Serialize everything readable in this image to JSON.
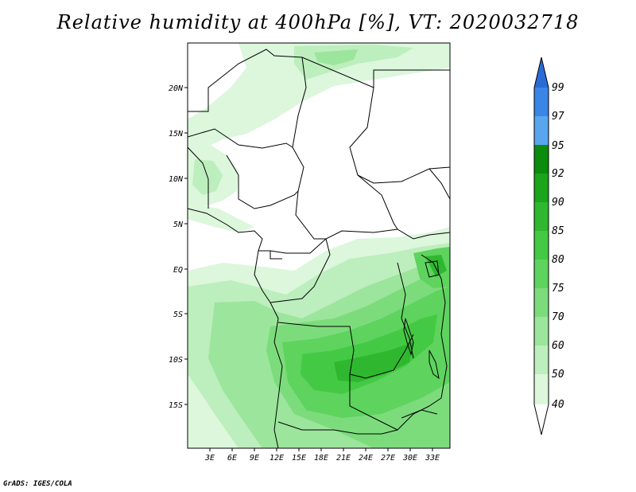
{
  "title": "Relative humidity at 400hPa [%], VT: 2020032718",
  "credit": "GrADS: IGES/COLA",
  "map": {
    "lat_labels": [
      "20N",
      "15N",
      "10N",
      "5N",
      "EQ",
      "5S",
      "10S",
      "15S"
    ],
    "lon_labels": [
      "3E",
      "6E",
      "9E",
      "12E",
      "15E",
      "18E",
      "21E",
      "24E",
      "27E",
      "30E",
      "33E"
    ]
  },
  "colorbar": {
    "labels": [
      "99",
      "97",
      "95",
      "92",
      "90",
      "85",
      "80",
      "75",
      "70",
      "60",
      "50",
      "40"
    ],
    "colors": [
      "#2a6bd6",
      "#3a86e6",
      "#5aa6ee",
      "#0c8c0c",
      "#1aa51a",
      "#2fb82f",
      "#44c944",
      "#5ed35e",
      "#7cdc7c",
      "#9ce59c",
      "#bdeebd",
      "#dcf7dc",
      "#ffffff"
    ]
  }
}
